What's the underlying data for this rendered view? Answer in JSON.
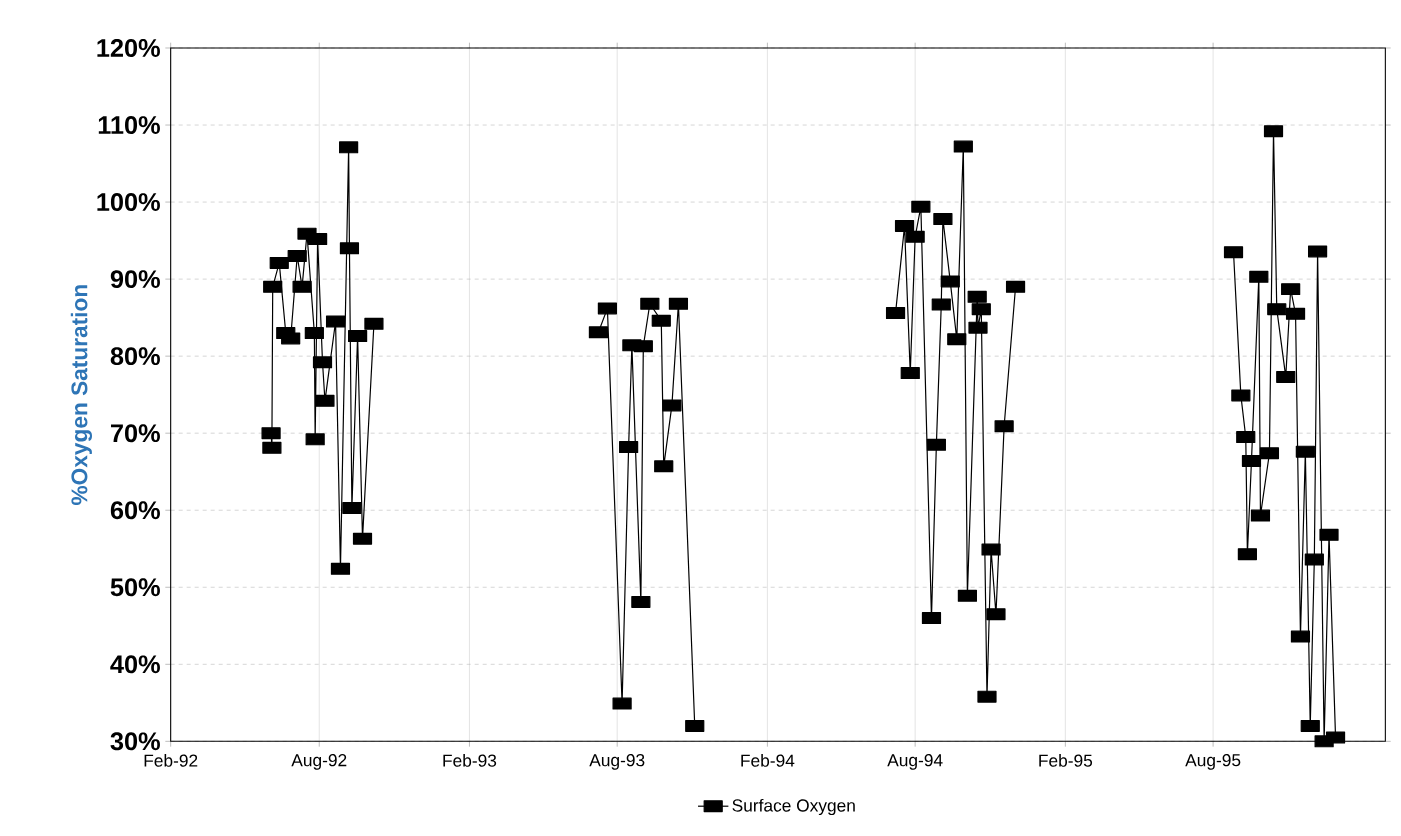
{
  "chart_data": {
    "type": "line",
    "ylabel": "%Oxygen Saturation",
    "x": [
      "1992-06-03",
      "1992-06-04",
      "1992-06-05",
      "1992-06-13",
      "1992-06-21",
      "1992-06-27",
      "1992-07-05",
      "1992-07-11",
      "1992-07-17",
      "1992-07-26",
      "1992-07-27",
      "1992-07-30",
      "1992-08-05",
      "1992-08-08",
      "1992-08-21",
      "1992-08-27",
      "1992-09-06",
      "1992-09-07",
      "1992-09-10",
      "1992-09-17",
      "1992-09-23",
      "1992-10-07",
      "1993-02-01",
      "1993-07-09",
      "1993-07-20",
      "1993-08-07",
      "1993-08-15",
      "1993-08-19",
      "1993-08-30",
      "1993-09-02",
      "1993-09-10",
      "1993-09-24",
      "1993-09-27",
      "1993-10-07",
      "1993-10-15",
      "1993-11-04",
      "1994-02-01",
      "1994-07-08",
      "1994-07-19",
      "1994-07-26",
      "1994-08-01",
      "1994-08-08",
      "1994-08-21",
      "1994-08-27",
      "1994-09-02",
      "1994-09-04",
      "1994-09-13",
      "1994-09-21",
      "1994-09-29",
      "1994-10-04",
      "1994-10-16",
      "1994-10-17",
      "1994-10-21",
      "1994-10-28",
      "1994-11-02",
      "1994-11-08",
      "1994-11-18",
      "1994-12-02",
      "1995-02-01",
      "1995-08-26",
      "1995-09-04",
      "1995-09-10",
      "1995-09-12",
      "1995-09-17",
      "1995-09-26",
      "1995-09-28",
      "1995-10-09",
      "1995-10-14",
      "1995-10-18",
      "1995-10-29",
      "1995-11-04",
      "1995-11-10",
      "1995-11-16",
      "1995-11-22",
      "1995-11-28",
      "1995-12-03",
      "1995-12-07",
      "1995-12-15",
      "1995-12-21",
      "1995-12-29"
    ],
    "series": [
      {
        "name": "Surface Oxygen",
        "color": "#000000",
        "values": [
          70.0,
          68.1,
          89.0,
          92.1,
          83.0,
          82.3,
          93.0,
          89.0,
          95.9,
          83.0,
          69.2,
          95.2,
          79.2,
          74.2,
          84.5,
          52.4,
          107.1,
          94.0,
          60.3,
          82.6,
          56.3,
          84.2,
          null,
          83.1,
          86.2,
          34.9,
          68.2,
          81.4,
          48.1,
          81.3,
          86.8,
          84.6,
          65.7,
          73.6,
          86.8,
          32.0,
          null,
          85.6,
          96.9,
          77.8,
          95.5,
          99.4,
          46.0,
          68.5,
          86.7,
          97.8,
          89.7,
          82.2,
          107.2,
          48.9,
          87.7,
          83.7,
          86.1,
          35.8,
          54.9,
          46.5,
          70.9,
          89.0,
          null,
          93.5,
          74.9,
          69.5,
          54.3,
          66.4,
          90.3,
          59.3,
          67.4,
          109.2,
          86.1,
          77.3,
          88.7,
          85.5,
          43.6,
          67.6,
          32.0,
          53.6,
          93.6,
          30.0,
          56.8,
          30.5
        ]
      }
    ],
    "xlim": [
      "1992-02-01",
      "1996-02-28"
    ],
    "xticks": [
      {
        "value": "1992-02-01",
        "label": "Feb-92"
      },
      {
        "value": "1992-08-01",
        "label": "Aug-92"
      },
      {
        "value": "1993-02-01",
        "label": "Feb-93"
      },
      {
        "value": "1993-08-01",
        "label": "Aug-93"
      },
      {
        "value": "1994-02-01",
        "label": "Feb-94"
      },
      {
        "value": "1994-08-01",
        "label": "Aug-94"
      },
      {
        "value": "1995-02-01",
        "label": "Feb-95"
      },
      {
        "value": "1995-08-01",
        "label": "Aug-95"
      }
    ],
    "ylim": [
      30,
      120
    ],
    "yticks": [
      {
        "value": 30,
        "label": "30%"
      },
      {
        "value": 40,
        "label": "40%"
      },
      {
        "value": 50,
        "label": "50%"
      },
      {
        "value": 60,
        "label": "60%"
      },
      {
        "value": 70,
        "label": "70%"
      },
      {
        "value": 80,
        "label": "80%"
      },
      {
        "value": 90,
        "label": "90%"
      },
      {
        "value": 100,
        "label": "100%"
      },
      {
        "value": 110,
        "label": "110%"
      },
      {
        "value": 120,
        "label": "120%"
      }
    ],
    "grid": true,
    "legend": "bottom",
    "marker": "square",
    "line_style": "solid"
  }
}
